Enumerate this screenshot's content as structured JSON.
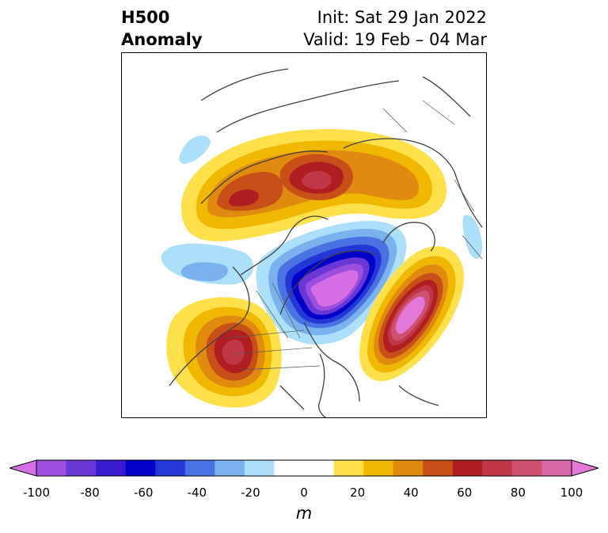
{
  "title": {
    "left_line1": "H500",
    "left_line2": "Anomaly",
    "right_line1": "Init: Sat 29 Jan 2022",
    "right_line2": "Valid: 19 Feb – 04 Mar"
  },
  "colorbar": {
    "unit": "m",
    "ticks": [
      "-100",
      "-80",
      "-60",
      "-40",
      "-20",
      "0",
      "20",
      "40",
      "60",
      "80",
      "100"
    ],
    "colors": [
      "#d66ee6",
      "#9c4ede",
      "#6a36d6",
      "#3a1ad0",
      "#0000c8",
      "#2438d8",
      "#4a72e2",
      "#7ab2ee",
      "#ace0fa",
      "#ffffff",
      "#ffffff",
      "#fde04a",
      "#f0b800",
      "#e08a10",
      "#c85018",
      "#b01e22",
      "#c03848",
      "#d05070",
      "#d868a8",
      "#e478d8"
    ],
    "range": [
      -100,
      100
    ]
  },
  "map": {
    "projection": "polar stereographic",
    "anomalies": [
      {
        "name": "Positive anomaly over Arctic / northern Siberia",
        "peak": 60
      },
      {
        "name": "Negative anomaly over Canada / Hudson Bay",
        "peak": -100
      },
      {
        "name": "Positive anomaly over North Atlantic",
        "peak": 100
      },
      {
        "name": "Positive anomaly over western North America",
        "peak": 70
      },
      {
        "name": "Weak negative anomaly over North Pacific",
        "peak": -20
      }
    ]
  }
}
